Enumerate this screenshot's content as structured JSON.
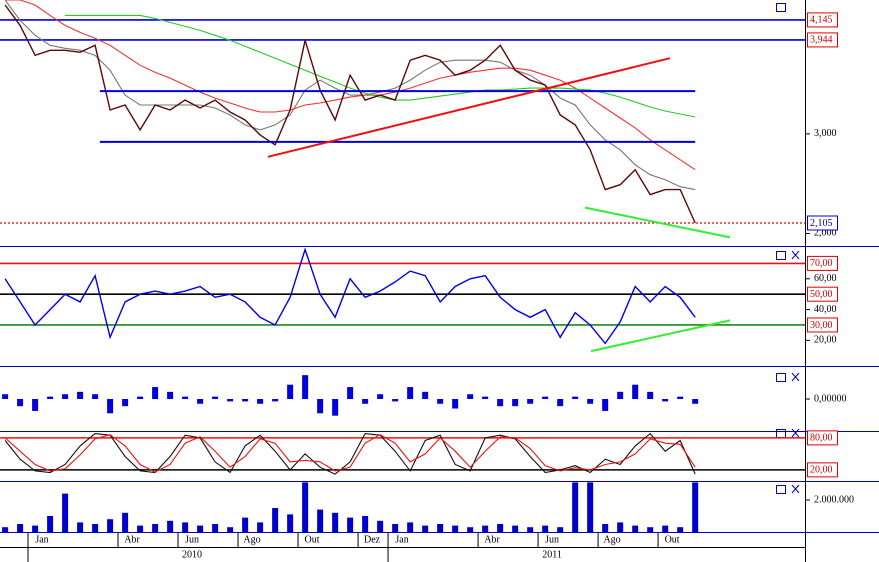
{
  "chart_data": {
    "type": "stock",
    "xlim": [
      -1.4,
      25.43
    ],
    "x": [
      -1.23,
      -0.73,
      -0.23,
      0.27,
      0.77,
      1.27,
      1.77,
      2.27,
      2.77,
      3.27,
      3.77,
      4.27,
      4.77,
      5.27,
      5.77,
      6.27,
      6.77,
      7.27,
      7.77,
      8.27,
      8.77,
      9.27,
      9.77,
      10.27,
      10.77,
      11.27,
      11.77,
      12.27,
      12.77,
      13.27,
      13.77,
      14.27,
      14.77,
      15.27,
      15.77,
      16.27,
      16.77,
      17.27,
      17.77,
      18.27,
      18.77,
      19.27,
      19.77,
      20.27,
      20.77,
      21.27,
      21.77
    ],
    "xticks": [
      {
        "value": 0,
        "label": "Jan"
      },
      {
        "value": 3,
        "label": "Abr"
      },
      {
        "value": 5,
        "label": "Jun"
      },
      {
        "value": 7,
        "label": "Ago"
      },
      {
        "value": 9,
        "label": "Out"
      },
      {
        "value": 11,
        "label": "Dez"
      },
      {
        "value": 12,
        "label": "Jan"
      },
      {
        "value": 15,
        "label": "Abr"
      },
      {
        "value": 17,
        "label": "Jun"
      },
      {
        "value": 19,
        "label": "Ago"
      },
      {
        "value": 21,
        "label": "Out"
      }
    ],
    "years": [
      "2010",
      "2011"
    ],
    "price": {
      "type": "line",
      "ylim": [
        1884,
        4345
      ],
      "yticks": [
        {
          "value": 3000,
          "label": "3,000"
        },
        {
          "value": 2000,
          "label": "2,000"
        }
      ],
      "levels": [
        {
          "value": 4145,
          "label": "4,145",
          "color": "#0000dd"
        },
        {
          "value": 3944,
          "label": "3,944",
          "color": "#0000dd"
        }
      ],
      "last": {
        "value": 2105,
        "label": "2,105",
        "color": "#dd0000"
      },
      "color": "#5a0a0a",
      "values": [
        4295,
        4090,
        3790,
        3840,
        3840,
        3820,
        3890,
        3240,
        3290,
        3040,
        3290,
        3240,
        3340,
        3260,
        3340,
        3220,
        3140,
        2990,
        2890,
        3240,
        3940,
        3440,
        3140,
        3590,
        3340,
        3390,
        3340,
        3740,
        3790,
        3740,
        3590,
        3640,
        3740,
        3890,
        3640,
        3540,
        3490,
        3190,
        3090,
        2840,
        2440,
        2490,
        2640,
        2390,
        2440,
        2440,
        2105
      ],
      "series": [
        {
          "color": "#777777",
          "values": [
            4345,
            4140,
            3990,
            3890,
            3860,
            3840,
            3790,
            3640,
            3390,
            3290,
            3290,
            3290,
            3290,
            3290,
            3260,
            3190,
            3090,
            3040,
            3090,
            3190,
            3440,
            3540,
            3460,
            3390,
            3390,
            3420,
            3460,
            3540,
            3640,
            3720,
            3740,
            3740,
            3740,
            3720,
            3640,
            3590,
            3490,
            3360,
            3290,
            3090,
            2940,
            2840,
            2690,
            2590,
            2540,
            2470,
            2440
          ]
        },
        {
          "color": "#ee3333",
          "values": [
            4345,
            4345,
            4295,
            4190,
            4090,
            4020,
            3960,
            3890,
            3790,
            3690,
            3620,
            3560,
            3490,
            3420,
            3360,
            3310,
            3260,
            3220,
            3220,
            3240,
            3290,
            3310,
            3340,
            3370,
            3390,
            3390,
            3420,
            3460,
            3510,
            3560,
            3590,
            3620,
            3640,
            3660,
            3660,
            3640,
            3590,
            3540,
            3460,
            3360,
            3260,
            3160,
            3060,
            2940,
            2840,
            2740,
            2640
          ]
        },
        {
          "color": "#22cc22",
          "values": [
            null,
            null,
            null,
            null,
            4190,
            4190,
            4190,
            4190,
            4190,
            4190,
            4160,
            4120,
            4080,
            4040,
            3990,
            3940,
            3880,
            3820,
            3760,
            3700,
            3640,
            3580,
            3520,
            3460,
            3410,
            3370,
            3340,
            3340,
            3360,
            3380,
            3400,
            3420,
            3440,
            3440,
            3450,
            3460,
            3460,
            3460,
            3450,
            3440,
            3410,
            3370,
            3320,
            3270,
            3230,
            3200,
            3170
          ]
        }
      ],
      "lines": [
        {
          "color": "#0000dd",
          "x": [
            1.93,
            21.77
          ],
          "values": [
            3430,
            3430
          ]
        },
        {
          "color": "#0000dd",
          "x": [
            1.93,
            21.77
          ],
          "values": [
            2920,
            2920
          ]
        },
        {
          "color": "#ee1111",
          "x": [
            7.53,
            20.93
          ],
          "values": [
            2770,
            3760
          ]
        },
        {
          "color": "#33ee33",
          "x": [
            18.1,
            22.93
          ],
          "values": [
            2260,
            1960
          ]
        }
      ]
    },
    "rsi": {
      "type": "line",
      "ylim": [
        4,
        80
      ],
      "yticks": [
        {
          "value": 60,
          "label": "60,00"
        },
        {
          "value": 40,
          "label": "40,00"
        },
        {
          "value": 20,
          "label": "20,00"
        }
      ],
      "levels": [
        {
          "value": 70,
          "label": "70,00",
          "color": "#ee1111"
        },
        {
          "value": 50,
          "label": "50,00",
          "color": "#000000"
        },
        {
          "value": 30,
          "label": "30,00",
          "color": "#1a8a1a"
        }
      ],
      "color": "#0000ee",
      "values": [
        60,
        45,
        30,
        40,
        50,
        45,
        62,
        22,
        45,
        50,
        52,
        50,
        52,
        55,
        48,
        50,
        45,
        35,
        30,
        48,
        79,
        50,
        35,
        60,
        48,
        52,
        58,
        65,
        62,
        45,
        55,
        60,
        62,
        48,
        40,
        35,
        40,
        22,
        38,
        30,
        18,
        32,
        55,
        45,
        55,
        48,
        35
      ],
      "lines": [
        {
          "color": "#33ee33",
          "x": [
            18.3,
            22.93
          ],
          "values": [
            13,
            33
          ]
        }
      ]
    },
    "osc": {
      "type": "bar",
      "ylim": [
        -1.3,
        1.3
      ],
      "yticks": [
        {
          "value": 0,
          "label": "0,00000"
        }
      ],
      "color": "#0000dd",
      "values": [
        0.2,
        -0.3,
        -0.5,
        0.1,
        0.2,
        0.3,
        0.2,
        -0.6,
        -0.3,
        0.1,
        0.5,
        0.3,
        0.1,
        -0.2,
        0.1,
        -0.1,
        -0.1,
        -0.2,
        -0.1,
        0.6,
        1.0,
        -0.6,
        -0.7,
        0.5,
        -0.2,
        0.2,
        -0.1,
        0.5,
        0.3,
        -0.2,
        -0.4,
        0.2,
        0.1,
        -0.3,
        -0.3,
        -0.2,
        0.1,
        -0.3,
        0.1,
        -0.2,
        -0.5,
        0.3,
        0.6,
        0.3,
        -0.1,
        0.1,
        -0.2
      ]
    },
    "stoch": {
      "type": "line",
      "ylim": [
        1,
        91
      ],
      "levels": [
        {
          "value": 80,
          "label": "80,00",
          "color": "#ee1111"
        },
        {
          "value": 20,
          "label": "20,00",
          "color": "#000000"
        }
      ],
      "series": [
        {
          "color": "#111111",
          "values": [
            75,
            40,
            18,
            15,
            30,
            65,
            88,
            85,
            45,
            18,
            15,
            45,
            85,
            80,
            35,
            15,
            65,
            85,
            55,
            20,
            50,
            25,
            12,
            35,
            88,
            85,
            55,
            18,
            75,
            85,
            30,
            18,
            80,
            85,
            78,
            45,
            15,
            20,
            28,
            15,
            40,
            30,
            65,
            88,
            55,
            75,
            12
          ]
        },
        {
          "color": "#ee1111",
          "values": [
            80,
            55,
            30,
            18,
            22,
            48,
            78,
            86,
            65,
            30,
            16,
            30,
            70,
            82,
            55,
            25,
            45,
            78,
            70,
            35,
            38,
            35,
            18,
            25,
            70,
            86,
            70,
            35,
            50,
            80,
            55,
            25,
            55,
            82,
            80,
            60,
            28,
            18,
            24,
            20,
            30,
            35,
            50,
            78,
            70,
            68,
            25
          ]
        }
      ]
    },
    "volume": {
      "type": "bar",
      "ylim": [
        0,
        3125000
      ],
      "yticks": [
        {
          "value": 2000000,
          "label": "2.000.000"
        }
      ],
      "color": "#0000cc",
      "values": [
        300000,
        500000,
        400000,
        1000000,
        2400000,
        600000,
        500000,
        800000,
        1200000,
        400000,
        500000,
        700000,
        600000,
        400000,
        500000,
        300000,
        900000,
        600000,
        1500000,
        1100000,
        3100000,
        1400000,
        1200000,
        900000,
        1000000,
        700000,
        500000,
        600000,
        400000,
        500000,
        400000,
        300000,
        400000,
        500000,
        400000,
        300000,
        400000,
        300000,
        3100000,
        3100000,
        500000,
        600000,
        400000,
        300000,
        400000,
        300000,
        3100000
      ]
    }
  }
}
